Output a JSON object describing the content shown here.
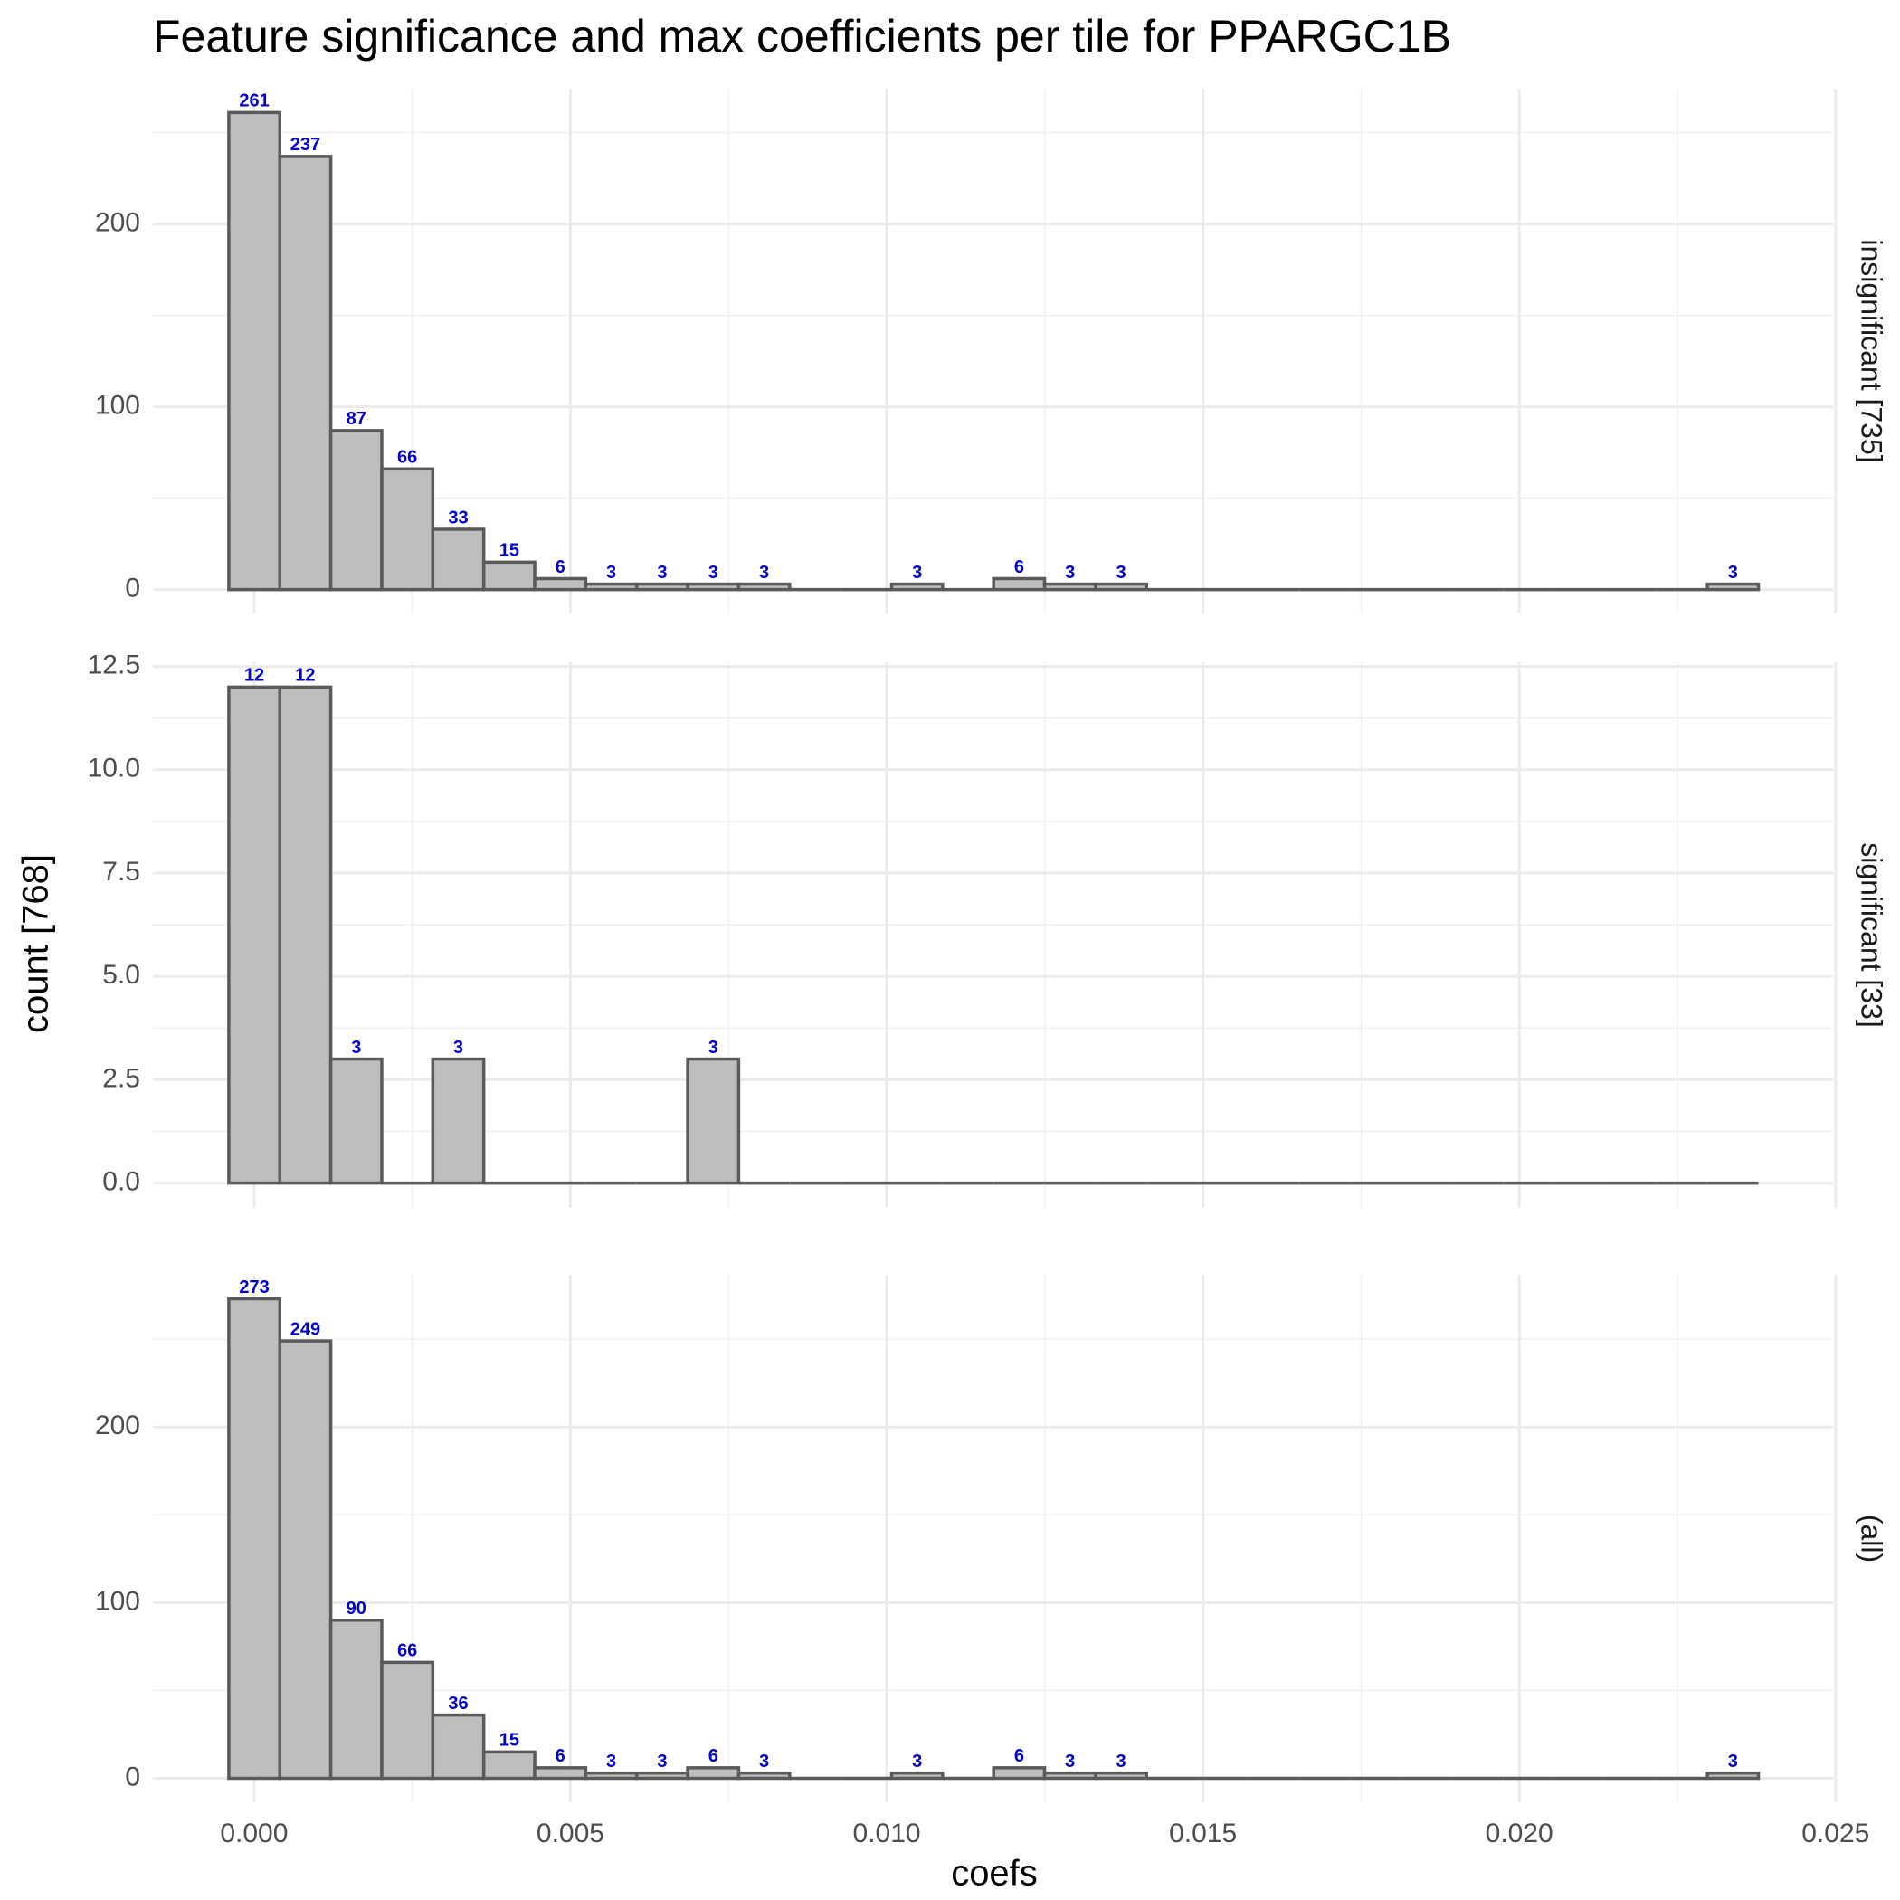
{
  "chart_data": {
    "type": "histogram",
    "title": "Feature significance and max coefficients per tile for PPARGC1B",
    "x_label": "coefs",
    "y_label": "count [768]",
    "fill": "#bebebe",
    "edge_color": "#5a5a5a",
    "label_color": "#0000cc",
    "grid": true,
    "bins": [
      -0.0004,
      0.000406,
      0.001212,
      0.002018,
      0.002824,
      0.00363,
      0.004436,
      0.005242,
      0.006048,
      0.006854,
      0.00766,
      0.008466,
      0.009272,
      0.010078,
      0.010884,
      0.01169,
      0.012496,
      0.013302,
      0.014108,
      0.014914,
      0.01572,
      0.016526,
      0.017332,
      0.018138,
      0.018944,
      0.01975,
      0.020556,
      0.021362,
      0.022168,
      0.022974,
      0.02378
    ],
    "xlim": [
      -0.0016,
      0.02496
    ],
    "xticks": [
      {
        "value": 0,
        "label": "0.000"
      },
      {
        "value": 0.005,
        "label": "0.005"
      },
      {
        "value": 0.01,
        "label": "0.010"
      },
      {
        "value": 0.015,
        "label": "0.015"
      },
      {
        "value": 0.02,
        "label": "0.020"
      },
      {
        "value": 0.025,
        "label": "0.025"
      }
    ],
    "facets": [
      {
        "name": "insignificant [735]",
        "ylim": [
          -13.05,
          274.05
        ],
        "yticks": [
          0,
          100,
          200
        ],
        "values": [
          261,
          237,
          87,
          66,
          33,
          15,
          6,
          3,
          3,
          3,
          3,
          0,
          0,
          3,
          0,
          6,
          3,
          3,
          0,
          0,
          0,
          0,
          0,
          0,
          0,
          0,
          0,
          0,
          0,
          3
        ]
      },
      {
        "name": "significant [33]",
        "ylim": [
          -0.6,
          12.6
        ],
        "yticks": [
          {
            "value": 0,
            "label": "0.0"
          },
          2.5,
          {
            "value": 5,
            "label": "5.0"
          },
          7.5,
          {
            "value": 10,
            "label": "10.0"
          },
          12.5
        ],
        "values": [
          12,
          12,
          3,
          0,
          3,
          0,
          0,
          0,
          0,
          3,
          0,
          0,
          0,
          0,
          0,
          0,
          0,
          0,
          0,
          0,
          0,
          0,
          0,
          0,
          0,
          0,
          0,
          0,
          0,
          0
        ]
      },
      {
        "name": "(all)",
        "ylim": [
          -13.65,
          286.65
        ],
        "yticks": [
          0,
          100,
          200
        ],
        "values": [
          273,
          249,
          90,
          66,
          36,
          15,
          6,
          3,
          3,
          6,
          3,
          0,
          0,
          3,
          0,
          6,
          3,
          3,
          0,
          0,
          0,
          0,
          0,
          0,
          0,
          0,
          0,
          0,
          0,
          3
        ]
      }
    ]
  }
}
